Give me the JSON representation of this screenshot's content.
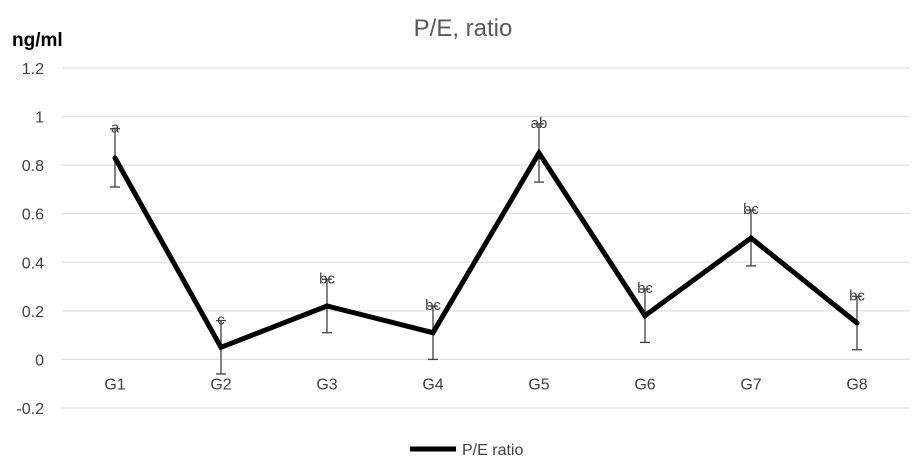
{
  "chart_data": {
    "type": "line",
    "title": "P/E, ratio",
    "unit_label": "ng/ml",
    "categories": [
      "G1",
      "G2",
      "G3",
      "G4",
      "G5",
      "G6",
      "G7",
      "G8"
    ],
    "ylim": [
      -0.2,
      1.2
    ],
    "yticks": [
      "-0.2",
      "0",
      "0.2",
      "0.4",
      "0.6",
      "0.8",
      "1",
      "1.2"
    ],
    "grid": true,
    "legend_position": "bottom",
    "series": [
      {
        "name": "P/E ratio",
        "color": "#000000",
        "values": [
          0.83,
          0.05,
          0.22,
          0.11,
          0.85,
          0.18,
          0.5,
          0.15
        ],
        "errors": [
          0.12,
          0.11,
          0.11,
          0.11,
          0.12,
          0.11,
          0.115,
          0.11
        ],
        "labels": [
          "a",
          "c",
          "bc",
          "bc",
          "ab",
          "bc",
          "bc",
          "bc"
        ]
      }
    ]
  }
}
